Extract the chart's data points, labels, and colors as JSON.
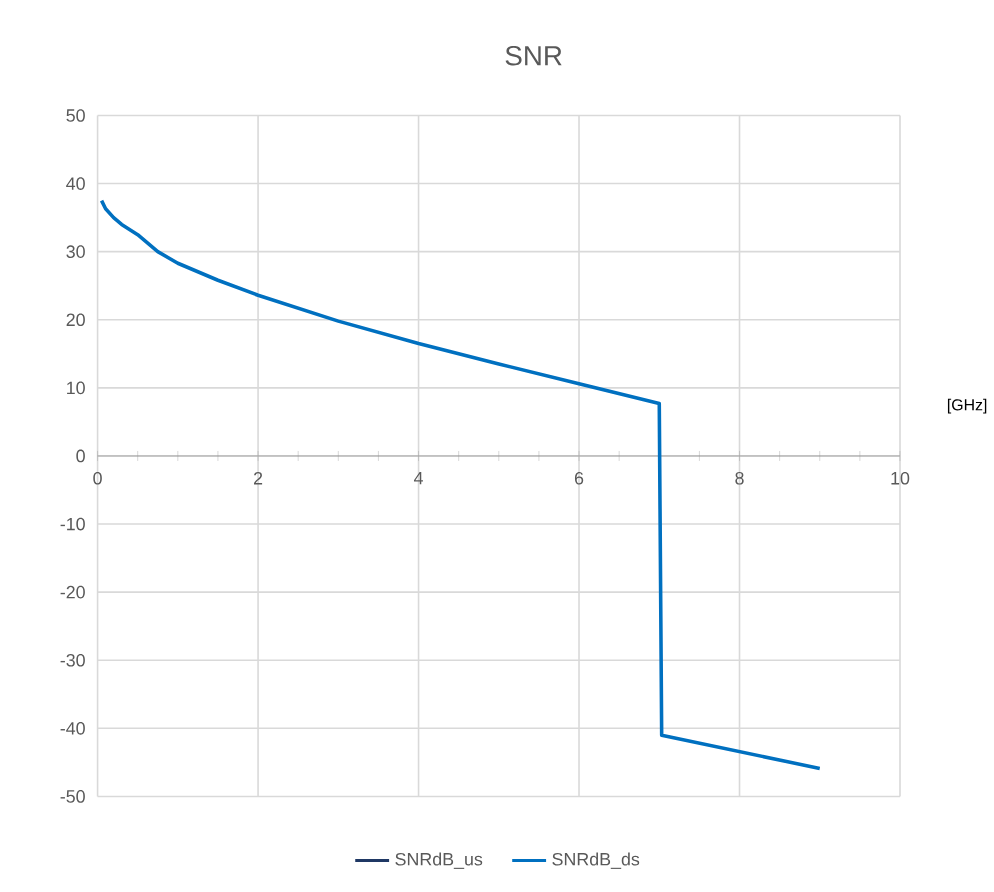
{
  "chart_data": {
    "type": "line",
    "title": "SNR",
    "xlabel": "[GHz]",
    "xlim": [
      0,
      10
    ],
    "xticks": [
      0,
      2,
      4,
      6,
      8,
      10
    ],
    "ylim": [
      -50,
      50
    ],
    "yticks": [
      -50,
      -40,
      -30,
      -20,
      -10,
      0,
      10,
      20,
      30,
      40,
      50
    ],
    "grid": true,
    "legend": "bottom",
    "marker": "none",
    "line_style": "solid",
    "x": [
      0.05,
      0.1,
      0.2,
      0.3,
      0.5,
      0.75,
      1,
      1.5,
      2,
      3,
      4,
      5,
      6,
      7,
      7.03,
      9
    ],
    "series": [
      {
        "name": "SNRdB_us",
        "color": "#1f3864",
        "values": [
          null,
          null,
          null,
          null,
          null,
          null,
          null,
          null,
          null,
          null,
          null,
          null,
          null,
          null,
          null,
          null
        ]
      },
      {
        "name": "SNRdB_ds",
        "color": "#0070c0",
        "values": [
          37.5,
          36.3,
          35,
          34,
          32.5,
          30,
          28.3,
          25.8,
          23.6,
          19.8,
          16.5,
          13.5,
          10.6,
          7.7,
          -41,
          -45.9
        ]
      }
    ]
  }
}
